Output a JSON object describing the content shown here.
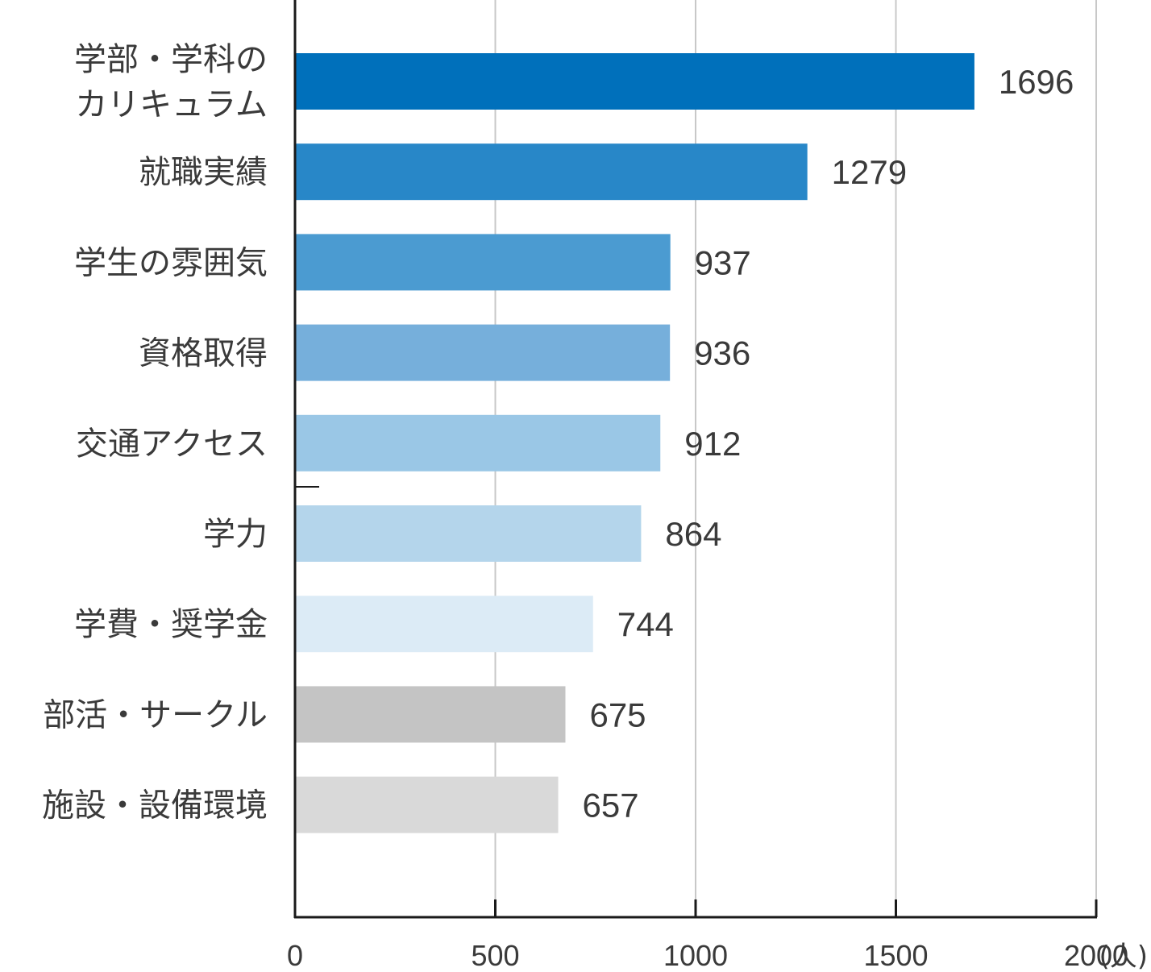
{
  "chart_data": {
    "type": "bar",
    "orientation": "horizontal",
    "categories": [
      [
        "学部・学科の",
        "カリキュラム"
      ],
      [
        "就職実績"
      ],
      [
        "学生の雰囲気"
      ],
      [
        "資格取得"
      ],
      [
        "交通アクセス"
      ],
      [
        "学力"
      ],
      [
        "学費・奨学金"
      ],
      [
        "部活・サークル"
      ],
      [
        "施設・設備環境"
      ]
    ],
    "values": [
      1696,
      1279,
      937,
      936,
      912,
      864,
      744,
      675,
      657
    ],
    "value_labels": [
      "1696",
      "1279",
      "937",
      "936",
      "912",
      "864",
      "744",
      "675",
      "657"
    ],
    "bar_colors": [
      "#0070bb",
      "#2887c8",
      "#4b9bd1",
      "#76afdb",
      "#9ac7e6",
      "#b4d5eb",
      "#dcebf6",
      "#c4c4c4",
      "#d9d9d9"
    ],
    "xlim": [
      0,
      2000
    ],
    "xticks": [
      0,
      500,
      1000,
      1500,
      2000
    ],
    "xtick_labels": [
      "0",
      "500",
      "1000",
      "1500",
      "2000"
    ],
    "unit": "(人)",
    "grid": "vertical",
    "grid_color": "#c8c8c8",
    "axis_color": "#1a1a1a",
    "title": "",
    "xlabel": "",
    "ylabel": ""
  }
}
